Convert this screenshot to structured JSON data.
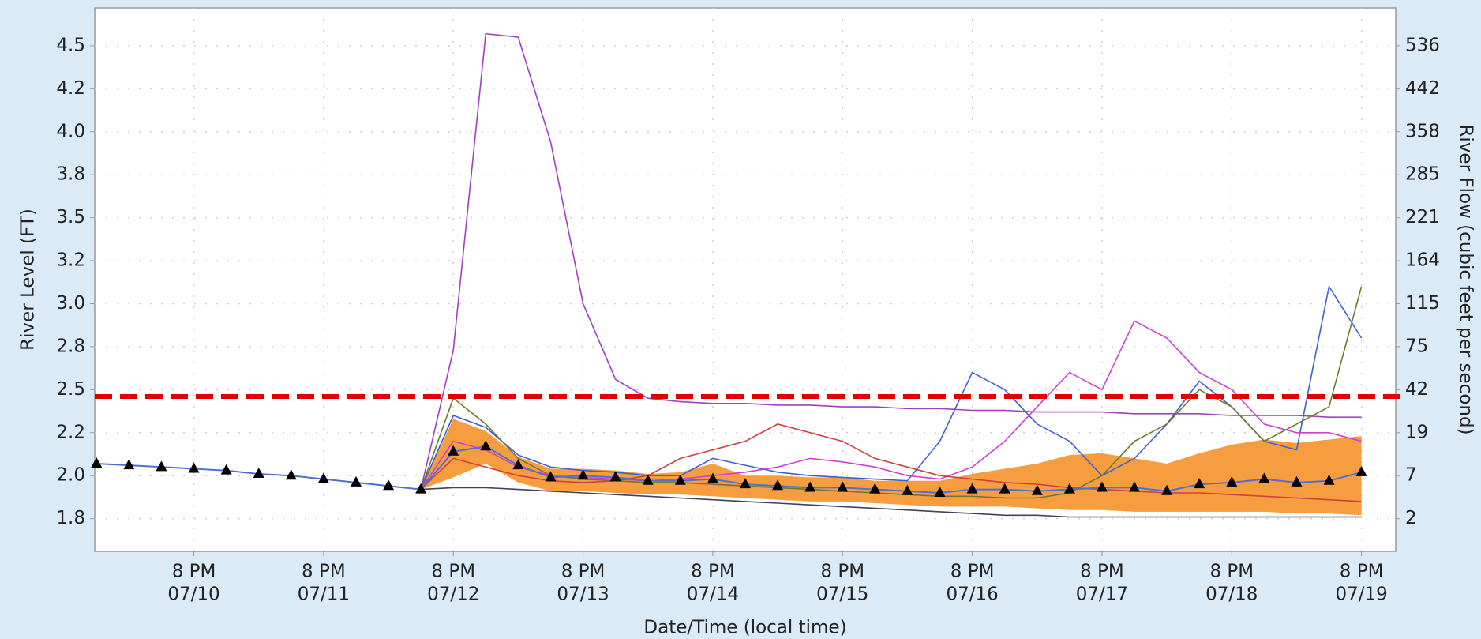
{
  "chart_data": {
    "type": "ensemble-hydrograph",
    "x_label": "Date/Time (local time)",
    "y_label": "River Level (FT)",
    "y2_label": "River Flow (cubic feet per second)",
    "xlim": [
      "07/10 01:40",
      "07/20 02:20"
    ],
    "xticks": [
      {
        "value": "07/10 20:00",
        "label": [
          "8 PM",
          "07/10"
        ]
      },
      {
        "value": "07/11 20:00",
        "label": [
          "8 PM",
          "07/11"
        ]
      },
      {
        "value": "07/12 20:00",
        "label": [
          "8 PM",
          "07/12"
        ]
      },
      {
        "value": "07/13 20:00",
        "label": [
          "8 PM",
          "07/13"
        ]
      },
      {
        "value": "07/14 20:00",
        "label": [
          "8 PM",
          "07/14"
        ]
      },
      {
        "value": "07/15 20:00",
        "label": [
          "8 PM",
          "07/15"
        ]
      },
      {
        "value": "07/16 20:00",
        "label": [
          "8 PM",
          "07/16"
        ]
      },
      {
        "value": "07/17 20:00",
        "label": [
          "8 PM",
          "07/17"
        ]
      },
      {
        "value": "07/18 20:00",
        "label": [
          "8 PM",
          "07/18"
        ]
      },
      {
        "value": "07/19 20:00",
        "label": [
          "8 PM",
          "07/19"
        ]
      }
    ],
    "ylim": [
      1.56,
      4.72
    ],
    "yticks": [
      {
        "value": 1.75,
        "label": "1.8"
      },
      {
        "value": 2.0,
        "label": "2.0"
      },
      {
        "value": 2.25,
        "label": "2.2"
      },
      {
        "value": 2.5,
        "label": "2.5"
      },
      {
        "value": 2.75,
        "label": "2.8"
      },
      {
        "value": 3.0,
        "label": "3.0"
      },
      {
        "value": 3.25,
        "label": "3.2"
      },
      {
        "value": 3.5,
        "label": "3.5"
      },
      {
        "value": 3.75,
        "label": "3.8"
      },
      {
        "value": 4.0,
        "label": "4.0"
      },
      {
        "value": 4.25,
        "label": "4.2"
      },
      {
        "value": 4.5,
        "label": "4.5"
      }
    ],
    "y2ticks": [
      2,
      7,
      19,
      42,
      75,
      115,
      164,
      221,
      285,
      358,
      442,
      536
    ],
    "grid": true,
    "threshold": 2.46,
    "threshold_color": "#e00000",
    "x": [
      "07/10 02:00",
      "07/10 08:00",
      "07/10 14:00",
      "07/10 20:00",
      "07/11 02:00",
      "07/11 08:00",
      "07/11 14:00",
      "07/11 20:00",
      "07/12 02:00",
      "07/12 08:00",
      "07/12 14:00",
      "07/12 20:00",
      "07/13 02:00",
      "07/13 08:00",
      "07/13 14:00",
      "07/13 20:00",
      "07/14 02:00",
      "07/14 08:00",
      "07/14 14:00",
      "07/14 20:00",
      "07/15 02:00",
      "07/15 08:00",
      "07/15 14:00",
      "07/15 20:00",
      "07/16 02:00",
      "07/16 08:00",
      "07/16 14:00",
      "07/16 20:00",
      "07/17 02:00",
      "07/17 08:00",
      "07/17 14:00",
      "07/17 20:00",
      "07/18 02:00",
      "07/18 08:00",
      "07/18 14:00",
      "07/18 20:00",
      "07/19 02:00",
      "07/19 08:00",
      "07/19 14:00",
      "07/19 20:00"
    ],
    "band": {
      "color": "#f5922b",
      "lower": [
        null,
        null,
        null,
        null,
        null,
        null,
        null,
        null,
        null,
        null,
        1.92,
        1.99,
        2.07,
        1.96,
        1.91,
        1.91,
        1.9,
        1.89,
        1.89,
        1.88,
        1.87,
        1.86,
        1.85,
        1.85,
        1.84,
        1.83,
        1.82,
        1.82,
        1.82,
        1.81,
        1.8,
        1.8,
        1.79,
        1.79,
        1.79,
        1.79,
        1.79,
        1.78,
        1.78,
        1.77
      ],
      "upper": [
        null,
        null,
        null,
        null,
        null,
        null,
        null,
        null,
        null,
        null,
        1.92,
        2.33,
        2.26,
        2.11,
        2.04,
        2.04,
        2.03,
        2.01,
        2.02,
        2.07,
        2.0,
        2.0,
        1.99,
        1.99,
        1.97,
        1.97,
        1.97,
        2.01,
        2.04,
        2.07,
        2.12,
        2.13,
        2.1,
        2.07,
        2.13,
        2.18,
        2.21,
        2.19,
        2.21,
        2.23
      ]
    },
    "series": [
      {
        "color": "#a040c0",
        "values": [
          null,
          null,
          null,
          null,
          null,
          null,
          null,
          null,
          null,
          null,
          1.92,
          2.73,
          4.57,
          4.55,
          3.94,
          3.0,
          2.56,
          2.45,
          2.43,
          2.42,
          2.42,
          2.41,
          2.41,
          2.4,
          2.4,
          2.39,
          2.39,
          2.38,
          2.38,
          2.37,
          2.37,
          2.37,
          2.36,
          2.36,
          2.36,
          2.35,
          2.35,
          2.35,
          2.34,
          2.34
        ]
      },
      {
        "color": "#4060d0",
        "values": [
          null,
          null,
          null,
          null,
          null,
          null,
          null,
          null,
          null,
          null,
          1.92,
          2.35,
          2.28,
          2.12,
          2.05,
          2.03,
          2.02,
          2.0,
          2.0,
          2.1,
          2.06,
          2.02,
          2.0,
          1.99,
          1.98,
          1.97,
          2.2,
          2.6,
          2.5,
          2.3,
          2.2,
          2.0,
          2.1,
          2.3,
          2.55,
          2.4,
          2.2,
          2.15,
          3.1,
          2.8
        ]
      },
      {
        "color": "#6a7a30",
        "values": [
          null,
          null,
          null,
          null,
          null,
          null,
          null,
          null,
          null,
          null,
          1.92,
          2.45,
          2.3,
          2.1,
          2.0,
          1.98,
          1.97,
          1.96,
          1.96,
          1.95,
          1.94,
          1.93,
          1.92,
          1.91,
          1.9,
          1.89,
          1.88,
          1.88,
          1.87,
          1.87,
          1.9,
          2.0,
          2.2,
          2.3,
          2.5,
          2.4,
          2.2,
          2.3,
          2.4,
          3.1
        ]
      },
      {
        "color": "#d040d0",
        "values": [
          null,
          null,
          null,
          null,
          null,
          null,
          null,
          null,
          null,
          null,
          1.92,
          2.2,
          2.15,
          2.05,
          2.0,
          1.99,
          1.98,
          1.97,
          1.98,
          2.0,
          2.02,
          2.05,
          2.1,
          2.08,
          2.05,
          2.0,
          1.98,
          2.05,
          2.2,
          2.4,
          2.6,
          2.5,
          2.9,
          2.8,
          2.6,
          2.5,
          2.3,
          2.25,
          2.25,
          2.2
        ]
      },
      {
        "color": "#d04040",
        "values": [
          null,
          null,
          null,
          null,
          null,
          null,
          null,
          null,
          null,
          null,
          1.92,
          2.1,
          2.05,
          2.0,
          1.97,
          1.96,
          1.97,
          2.0,
          2.1,
          2.15,
          2.2,
          2.3,
          2.25,
          2.2,
          2.1,
          2.05,
          2.0,
          1.98,
          1.96,
          1.95,
          1.93,
          1.92,
          1.91,
          1.9,
          1.9,
          1.89,
          1.88,
          1.87,
          1.86,
          1.85
        ]
      },
      {
        "color": "#404060",
        "values": [
          null,
          null,
          null,
          null,
          null,
          null,
          null,
          null,
          null,
          null,
          1.92,
          1.93,
          1.93,
          1.92,
          1.91,
          1.9,
          1.89,
          1.88,
          1.87,
          1.86,
          1.85,
          1.84,
          1.83,
          1.82,
          1.81,
          1.8,
          1.79,
          1.78,
          1.77,
          1.77,
          1.76,
          1.76,
          1.76,
          1.76,
          1.76,
          1.76,
          1.76,
          1.76,
          1.76,
          1.76
        ]
      }
    ],
    "markers": {
      "color": "#000000",
      "line_color": "#5070d0",
      "values": [
        2.07,
        2.06,
        2.05,
        2.04,
        2.03,
        2.01,
        2.0,
        1.98,
        1.96,
        1.94,
        1.92,
        2.14,
        2.17,
        2.06,
        1.99,
        2.0,
        1.99,
        1.97,
        1.97,
        1.98,
        1.95,
        1.94,
        1.93,
        1.93,
        1.92,
        1.91,
        1.9,
        1.92,
        1.92,
        1.91,
        1.92,
        1.93,
        1.93,
        1.91,
        1.95,
        1.96,
        1.98,
        1.96,
        1.97,
        2.02
      ]
    }
  }
}
